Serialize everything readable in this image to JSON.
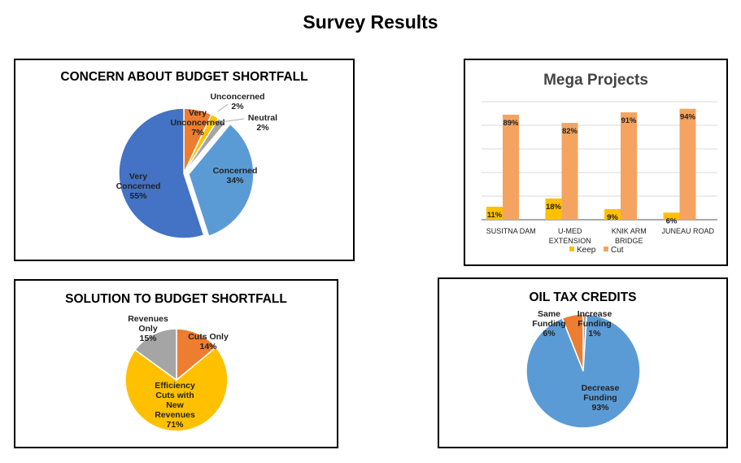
{
  "page_title": "Survey Results",
  "colors": {
    "orange": "#ED7D31",
    "yellow": "#FFC000",
    "gray": "#A5A5A5",
    "light_blue": "#5B9BD5",
    "dark_blue": "#4472C4"
  },
  "chart_data": [
    {
      "type": "pie",
      "title": "CONCERN ABOUT BUDGET SHORTFALL",
      "slices": [
        {
          "label": "Very Unconcerned",
          "value": 7,
          "color": "#ED7D31"
        },
        {
          "label": "Unconcerned",
          "value": 2,
          "color": "#FFC000"
        },
        {
          "label": "Neutral",
          "value": 2,
          "color": "#A5A5A5"
        },
        {
          "label": "Concerned",
          "value": 34,
          "color": "#5B9BD5"
        },
        {
          "label": "Very Concerned",
          "value": 55,
          "color": "#4472C4"
        }
      ]
    },
    {
      "type": "bar",
      "title": "Mega Projects",
      "categories": [
        "SUSITNA DAM",
        "U-MED EXTENSION",
        "KNIK ARM BRIDGE",
        "JUNEAU ROAD"
      ],
      "series": [
        {
          "name": "Keep",
          "values": [
            11,
            18,
            9,
            6
          ],
          "color": "#FFC000"
        },
        {
          "name": "Cut",
          "values": [
            89,
            82,
            91,
            94
          ],
          "color": "#F4A460"
        }
      ],
      "ylim": [
        0,
        100
      ],
      "grid": true,
      "legend": "bottom"
    },
    {
      "type": "pie",
      "title": "SOLUTION TO BUDGET SHORTFALL",
      "slices": [
        {
          "label": "Cuts Only",
          "value": 14,
          "color": "#ED7D31"
        },
        {
          "label": "Efficiency Cuts with New Revenues",
          "value": 71,
          "color": "#FFC000"
        },
        {
          "label": "Revenues Only",
          "value": 15,
          "color": "#A5A5A5"
        }
      ]
    },
    {
      "type": "pie",
      "title": "OIL TAX CREDITS",
      "slices": [
        {
          "label": "Increase Funding",
          "value": 1,
          "color": "#A5A5A5"
        },
        {
          "label": "Decrease Funding",
          "value": 93,
          "color": "#5B9BD5"
        },
        {
          "label": "Same Funding",
          "value": 6,
          "color": "#ED7D31"
        }
      ]
    }
  ]
}
